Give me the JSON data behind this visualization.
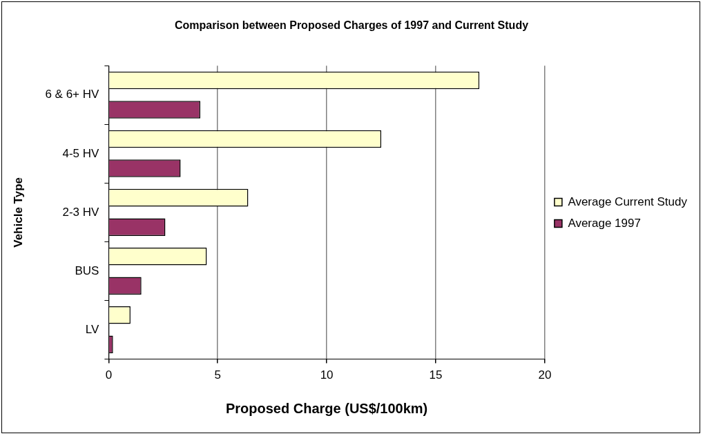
{
  "chart_data": {
    "type": "bar",
    "orientation": "horizontal",
    "title": "Comparison between Proposed Charges of 1997 and Current Study",
    "xlabel": "Proposed Charge (US$/100km)",
    "ylabel": "Vehicle Type",
    "categories": [
      "6 & 6+ HV",
      "4-5 HV",
      "2-3 HV",
      "BUS",
      "LV"
    ],
    "series": [
      {
        "name": "Average Current Study",
        "color": "#ffffcc",
        "values": [
          17.0,
          12.5,
          6.4,
          4.5,
          1.0
        ]
      },
      {
        "name": "Average 1997",
        "color": "#993366",
        "values": [
          4.2,
          3.3,
          2.6,
          1.5,
          0.2
        ]
      }
    ],
    "xlim": [
      0,
      20
    ],
    "xticks": [
      0,
      5,
      10,
      15,
      20
    ],
    "grid": "x",
    "legend": "right"
  }
}
